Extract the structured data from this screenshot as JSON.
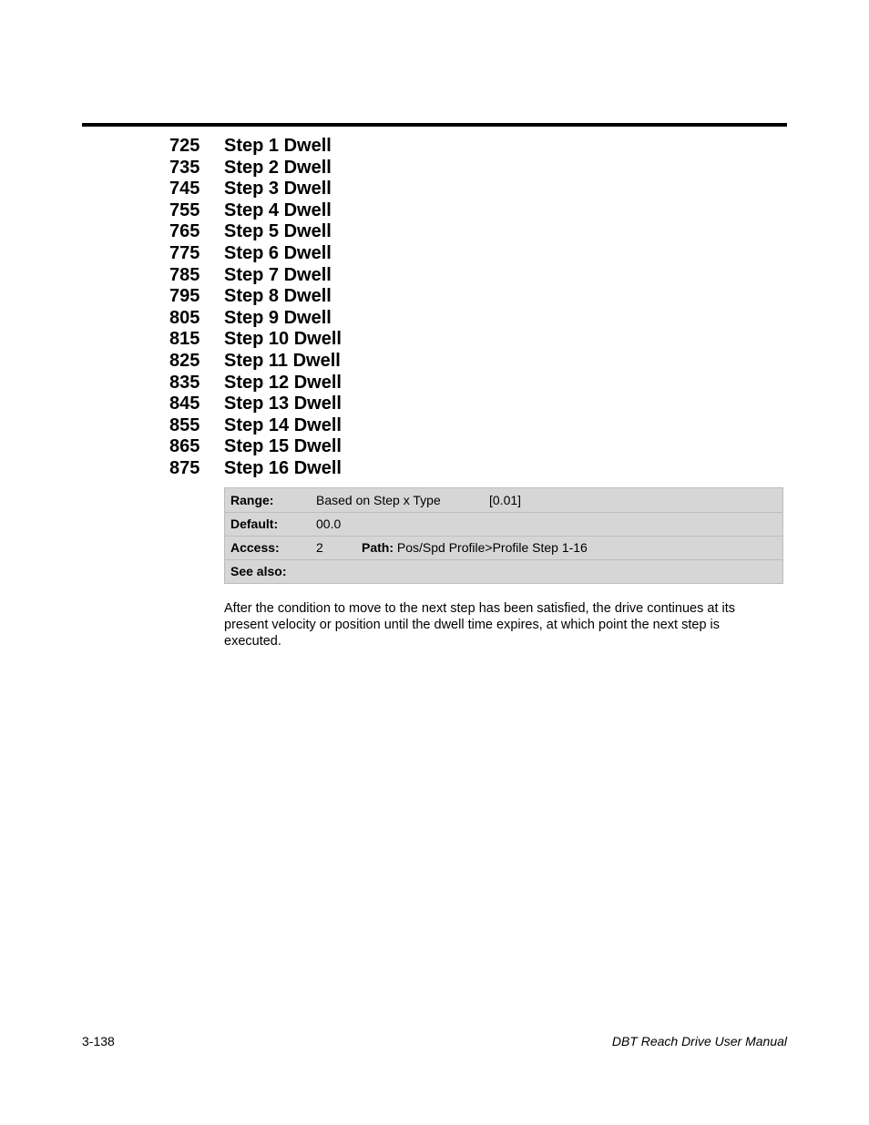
{
  "colors": {
    "page_bg": "#ffffff",
    "text": "#000000",
    "rule": "#000000",
    "table_bg": "#d6d6d6",
    "table_border": "#bdbdbd"
  },
  "typography": {
    "heading_size_pt": 15,
    "heading_weight": "bold",
    "body_size_pt": 11,
    "table_size_pt": 10.5,
    "footer_size_pt": 10.5
  },
  "parameters": [
    {
      "num": "725",
      "name": "Step 1 Dwell"
    },
    {
      "num": "735",
      "name": "Step 2 Dwell"
    },
    {
      "num": "745",
      "name": "Step 3 Dwell"
    },
    {
      "num": "755",
      "name": "Step 4 Dwell"
    },
    {
      "num": "765",
      "name": "Step 5 Dwell"
    },
    {
      "num": "775",
      "name": "Step 6 Dwell"
    },
    {
      "num": "785",
      "name": "Step 7 Dwell"
    },
    {
      "num": "795",
      "name": "Step 8 Dwell"
    },
    {
      "num": "805",
      "name": "Step 9 Dwell"
    },
    {
      "num": "815",
      "name": "Step 10 Dwell"
    },
    {
      "num": "825",
      "name": "Step 11 Dwell"
    },
    {
      "num": "835",
      "name": "Step 12 Dwell"
    },
    {
      "num": "845",
      "name": "Step 13 Dwell"
    },
    {
      "num": "855",
      "name": "Step 14 Dwell"
    },
    {
      "num": "865",
      "name": "Step 15 Dwell"
    },
    {
      "num": "875",
      "name": "Step 16 Dwell"
    }
  ],
  "info": {
    "range_label": "Range:",
    "range_value": "Based on Step x Type",
    "range_bracket": "[0.01]",
    "default_label": "Default:",
    "default_value": "00.0",
    "access_label": "Access:",
    "access_value": "2",
    "path_label": "Path:",
    "path_value": "Pos/Spd Profile>Profile Step 1-16",
    "seealso_label": "See also:",
    "seealso_value": ""
  },
  "body_text": "After the condition to move to the next step has been satisfied, the drive continues at its present velocity or position until the dwell time expires, at which point the next step is executed.",
  "footer": {
    "page_number": "3-138",
    "manual_title": "DBT Reach Drive User Manual"
  }
}
